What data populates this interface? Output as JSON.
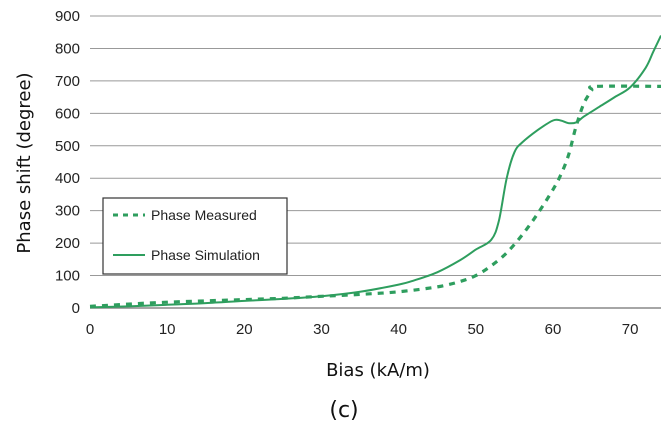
{
  "chart_data": {
    "type": "line",
    "xlabel": "Bias (kA/m)",
    "ylabel": "Phase shift (degree)",
    "caption": "(c)",
    "xlim": [
      0,
      74
    ],
    "ylim": [
      0,
      900
    ],
    "x_ticks": [
      0,
      10,
      20,
      30,
      40,
      50,
      60,
      70
    ],
    "y_ticks": [
      0,
      100,
      200,
      300,
      400,
      500,
      600,
      700,
      800,
      900
    ],
    "grid": "horizontal",
    "legend_position": "left-middle",
    "series": [
      {
        "name": "Phase Measured",
        "style": "dashed",
        "color": "#2e9e5e",
        "points": [
          [
            0,
            5
          ],
          [
            5,
            12
          ],
          [
            10,
            18
          ],
          [
            15,
            22
          ],
          [
            20,
            26
          ],
          [
            25,
            30
          ],
          [
            30,
            36
          ],
          [
            35,
            42
          ],
          [
            40,
            50
          ],
          [
            45,
            65
          ],
          [
            48,
            82
          ],
          [
            50,
            100
          ],
          [
            52,
            130
          ],
          [
            54,
            170
          ],
          [
            56,
            225
          ],
          [
            58,
            290
          ],
          [
            60,
            365
          ],
          [
            61,
            410
          ],
          [
            62,
            470
          ],
          [
            63,
            560
          ],
          [
            64,
            630
          ],
          [
            65,
            670
          ],
          [
            65.5,
            683
          ],
          [
            74,
            683
          ]
        ]
      },
      {
        "name": "Phase Simulation",
        "style": "solid",
        "color": "#2e9e5e",
        "points": [
          [
            0,
            2
          ],
          [
            5,
            5
          ],
          [
            10,
            10
          ],
          [
            15,
            15
          ],
          [
            20,
            22
          ],
          [
            25,
            28
          ],
          [
            30,
            36
          ],
          [
            35,
            50
          ],
          [
            40,
            72
          ],
          [
            42,
            85
          ],
          [
            45,
            110
          ],
          [
            48,
            148
          ],
          [
            50,
            180
          ],
          [
            52,
            210
          ],
          [
            53,
            270
          ],
          [
            54,
            400
          ],
          [
            55,
            480
          ],
          [
            56,
            510
          ],
          [
            58,
            548
          ],
          [
            60,
            578
          ],
          [
            61,
            578
          ],
          [
            62,
            570
          ],
          [
            63,
            572
          ],
          [
            64,
            590
          ],
          [
            66,
            620
          ],
          [
            68,
            650
          ],
          [
            70,
            680
          ],
          [
            72,
            740
          ],
          [
            73,
            790
          ],
          [
            74,
            840
          ]
        ]
      }
    ]
  }
}
